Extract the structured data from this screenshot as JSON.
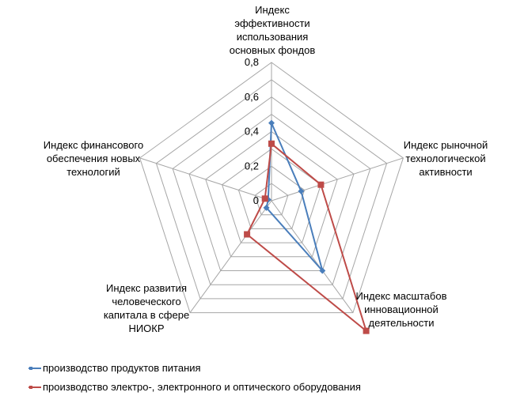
{
  "chart_data": {
    "type": "radar",
    "axes": [
      "Индекс\nэффективности\nиспользования\nосновных фондов",
      "Индекс рыночной\nтехнологической\nактивности",
      "Индекс масштабов\nинновационной\nдеятельности",
      "Индекс развития\nчеловеческого\nкапитала в сфере\nНИОКР",
      "Индекс финансового\nобеспечения  новых\nтехнологий"
    ],
    "rlim": [
      0,
      0.8
    ],
    "ticks": [
      "0",
      "0,2",
      "0,4",
      "0,6",
      "0,8"
    ],
    "tick_values": [
      0,
      0.2,
      0.4,
      0.6,
      0.8
    ],
    "grid": true,
    "series": [
      {
        "name": "производство продуктов питания",
        "values": [
          0.45,
          0.18,
          0.5,
          0.05,
          0.02
        ],
        "color": "#4a7ebb",
        "marker": "diamond"
      },
      {
        "name": "производство электро-, электронного и оптического оборудования",
        "values": [
          0.33,
          0.3,
          0.93,
          0.24,
          0.04
        ],
        "color": "#be4b48",
        "marker": "square"
      }
    ],
    "legend_position": "bottom-left"
  }
}
